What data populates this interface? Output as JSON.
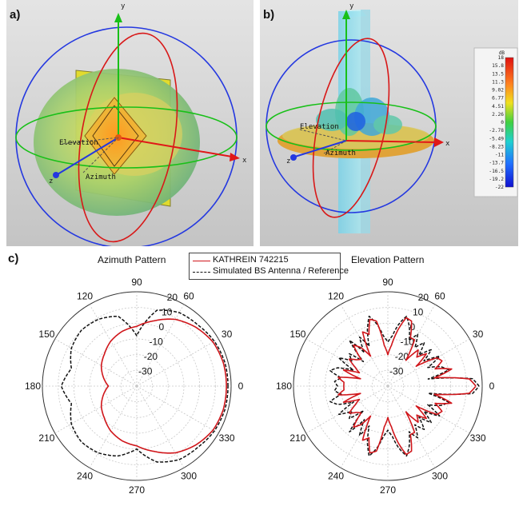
{
  "panels": {
    "a": {
      "label": "a)",
      "axis_labels": {
        "y": "y",
        "x": "x",
        "z": "z"
      },
      "elevation_label": "Elevation",
      "azimuth_label": "Azimuth"
    },
    "b": {
      "label": "b)",
      "axis_labels": {
        "y": "y",
        "x": "x",
        "z": "z"
      },
      "elevation_label": "Elevation",
      "azimuth_label": "Azimuth",
      "colorbar": {
        "unit": "dB",
        "ticks": [
          "18",
          "15.8",
          "13.5",
          "11.3",
          "9.02",
          "6.77",
          "4.51",
          "2.26",
          "0",
          "-2.78",
          "-5.49",
          "-8.23",
          "-11",
          "-13.7",
          "-16.5",
          "-19.2",
          "-22"
        ]
      }
    },
    "c": {
      "label": "c)"
    }
  },
  "legend": {
    "items": [
      {
        "label": "KATHREIN 742215",
        "color": "#d0161b",
        "style": "solid"
      },
      {
        "label": "Simulated BS Antenna / Reference",
        "color": "#111111",
        "style": "dashed"
      }
    ]
  },
  "colors": {
    "red": "#d0161b",
    "black": "#111111",
    "grid": "#c8c8c8"
  },
  "chart_data": [
    {
      "type": "polar",
      "title": "Azimuth Pattern",
      "angle_ticks": [
        "0",
        "30",
        "60",
        "90",
        "120",
        "150",
        "180",
        "210",
        "240",
        "270",
        "300",
        "330"
      ],
      "radial_ticks": [
        "20",
        "10",
        "0",
        "-10",
        "-20",
        "-30"
      ],
      "rlim": [
        -40,
        20
      ],
      "series": [
        {
          "name": "KATHREIN 742215",
          "theta": [
            0,
            15,
            30,
            45,
            60,
            75,
            90,
            105,
            120,
            135,
            150,
            165,
            180,
            195,
            210,
            225,
            240,
            255,
            270,
            285,
            300,
            315,
            330,
            345
          ],
          "r": [
            17,
            17,
            16,
            13,
            9,
            3,
            -2,
            -4,
            -7,
            -11,
            -14,
            -18,
            -22,
            -18,
            -14,
            -11,
            -7,
            -4,
            -2,
            3,
            9,
            13,
            16,
            17
          ]
        },
        {
          "name": "Simulated BS Antenna / Reference",
          "theta": [
            0,
            15,
            30,
            45,
            60,
            75,
            90,
            105,
            120,
            135,
            150,
            165,
            180,
            195,
            210,
            225,
            240,
            255,
            270,
            285,
            300,
            315,
            330,
            345
          ],
          "r": [
            18,
            18,
            17,
            15,
            14,
            10,
            -8,
            6,
            9,
            10,
            8,
            3,
            8,
            3,
            8,
            10,
            9,
            6,
            0,
            10,
            14,
            15,
            17,
            18
          ]
        }
      ]
    },
    {
      "type": "polar",
      "title": "Elevation Pattern",
      "angle_ticks": [
        "0",
        "30",
        "60",
        "90",
        "120",
        "150",
        "180",
        "210",
        "240",
        "270",
        "300",
        "330"
      ],
      "radial_ticks": [
        "20",
        "10",
        "0",
        "-10",
        "-20",
        "-30"
      ],
      "rlim": [
        -40,
        20
      ],
      "series": [
        {
          "name": "KATHREIN 742215",
          "theta": [
            0,
            5,
            10,
            15,
            20,
            25,
            30,
            35,
            40,
            45,
            50,
            55,
            60,
            65,
            70,
            75,
            80,
            85,
            90,
            95,
            100,
            105,
            110,
            115,
            120,
            125,
            130,
            135,
            140,
            145,
            150,
            155,
            160,
            165,
            170,
            175,
            180,
            185,
            190,
            195,
            200,
            205,
            210,
            215,
            220,
            225,
            230,
            235,
            240,
            245,
            250,
            255,
            260,
            265,
            270,
            275,
            280,
            285,
            290,
            295,
            300,
            305,
            310,
            315,
            320,
            325,
            330,
            335,
            340,
            345,
            350,
            355
          ],
          "r": [
            16,
            12,
            -10,
            2,
            -8,
            -2,
            -4,
            -18,
            -8,
            -14,
            -10,
            -20,
            -6,
            -6,
            4,
            5,
            -4,
            -14,
            -20,
            -14,
            2,
            4,
            -5,
            -2,
            -18,
            -10,
            -6,
            -16,
            -14,
            -10,
            -16,
            -20,
            -10,
            -22,
            -8,
            -12,
            -12,
            -12,
            -8,
            -22,
            -10,
            -20,
            -16,
            -10,
            -14,
            -16,
            -6,
            -10,
            -18,
            -2,
            -5,
            4,
            2,
            -14,
            -20,
            -14,
            -4,
            5,
            4,
            -6,
            -6,
            -20,
            -10,
            -14,
            -8,
            -18,
            -4,
            -2,
            -8,
            2,
            -10,
            12
          ]
        },
        {
          "name": "Simulated BS Antenna / Reference",
          "theta": [
            0,
            5,
            10,
            15,
            20,
            25,
            30,
            35,
            40,
            45,
            50,
            55,
            60,
            65,
            70,
            75,
            80,
            85,
            90,
            95,
            100,
            105,
            110,
            115,
            120,
            125,
            130,
            135,
            140,
            145,
            150,
            155,
            160,
            165,
            170,
            175,
            180,
            185,
            190,
            195,
            200,
            205,
            210,
            215,
            220,
            225,
            230,
            235,
            240,
            245,
            250,
            255,
            260,
            265,
            270,
            275,
            280,
            285,
            290,
            295,
            300,
            305,
            310,
            315,
            320,
            325,
            330,
            335,
            340,
            345,
            350,
            355
          ],
          "r": [
            18,
            14,
            -14,
            0,
            -4,
            -12,
            -2,
            -12,
            -4,
            -12,
            -4,
            -10,
            -2,
            -8,
            0,
            6,
            0,
            -8,
            -12,
            -8,
            0,
            6,
            -2,
            -12,
            -4,
            -14,
            -2,
            -18,
            -8,
            -12,
            -4,
            -16,
            -6,
            -2,
            -10,
            -6,
            -8,
            -6,
            -10,
            -2,
            -6,
            -16,
            -4,
            -12,
            -8,
            -18,
            -2,
            -14,
            -4,
            -12,
            -2,
            6,
            0,
            -8,
            -12,
            -8,
            0,
            6,
            0,
            -8,
            -2,
            -10,
            -4,
            -12,
            -4,
            -12,
            -2,
            -12,
            -4,
            0,
            -14,
            14
          ]
        }
      ]
    }
  ]
}
